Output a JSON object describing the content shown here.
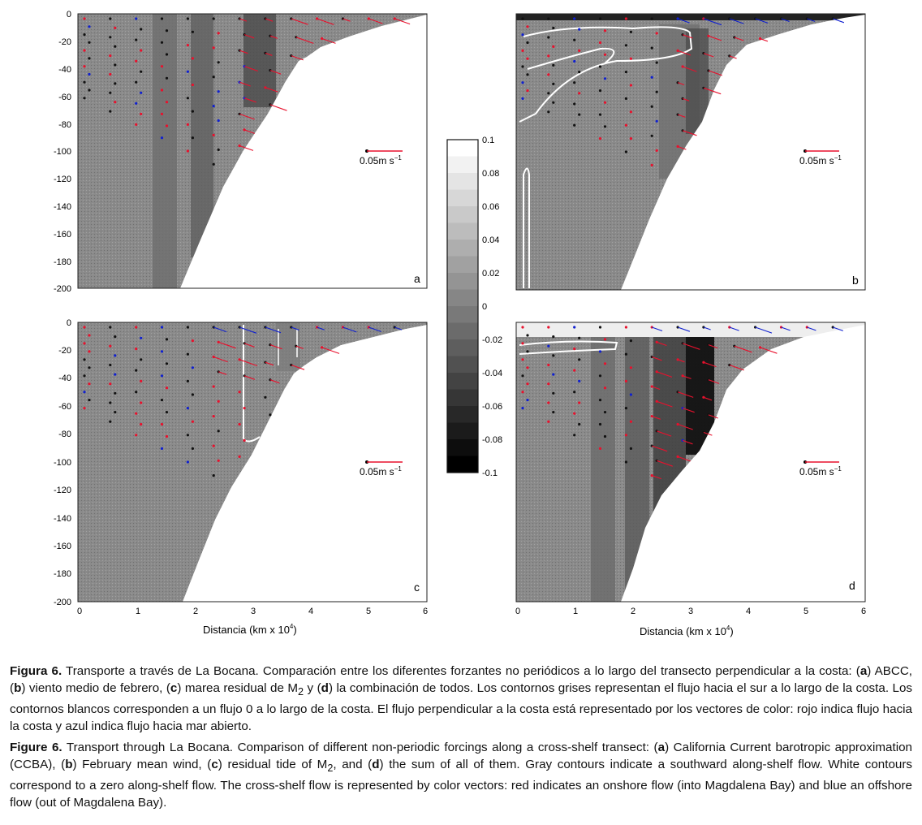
{
  "figure": {
    "panels": [
      {
        "id": "a",
        "label": "a",
        "scale_label": "0.05m s",
        "scale_exp": "−1",
        "y_ticks": [
          "0",
          "-20",
          "-40",
          "-60",
          "-80",
          "-100",
          "-120",
          "-140",
          "-160",
          "-180",
          "-200"
        ]
      },
      {
        "id": "b",
        "label": "b",
        "scale_label": "0.05m s",
        "scale_exp": "−1"
      },
      {
        "id": "c",
        "label": "c",
        "scale_label": "0.05m s",
        "scale_exp": "−1",
        "y_ticks": [
          "0",
          "-20",
          "-40",
          "-60",
          "-80",
          "-100",
          "-120",
          "-140",
          "-160",
          "-180",
          "-200"
        ],
        "x_ticks": [
          "0",
          "1",
          "2",
          "3",
          "4",
          "5",
          "6"
        ]
      },
      {
        "id": "d",
        "label": "d",
        "scale_label": "0.05m s",
        "scale_exp": "−1",
        "x_ticks": [
          "0",
          "1",
          "2",
          "3",
          "4",
          "5",
          "6"
        ]
      }
    ],
    "xlabel_left": "Distancia (km x 10",
    "xlabel_right": "Distancia (km x 10",
    "xlabel_exp": "4",
    "xlabel_close": ")",
    "colorbar_ticks": [
      "0.1",
      "0.08",
      "0.06",
      "0.04",
      "0.02",
      "0",
      "-0.02",
      "-0.04",
      "-0.06",
      "-0.08",
      "-0.1"
    ],
    "colors": {
      "onshore": "#e8112d",
      "offshore": "#1020d0"
    }
  },
  "caption_es": {
    "label": "Figura 6.",
    "t1": " Transporte a través de La Bocana. Comparación entre los diferentes forzantes no periódicos a lo largo del transecto perpendicular a la costa: (",
    "a": "a",
    "t2": ") ABCC, (",
    "b": "b",
    "t3": ") viento medio de febrero, (",
    "c": "c",
    "t4": ") marea residual de M",
    "sub": "2",
    "t5": " y (",
    "d": "d",
    "t6": ") la combinación de todos. Los contornos grises representan el flujo hacia el sur a lo largo de la costa. Los contornos blancos corresponden a un flujo 0 a lo largo de la costa. El flujo perpendicular a la costa está representado por los vectores de color: rojo indica flujo hacia la costa y azul indica flujo hacia mar abierto."
  },
  "caption_en": {
    "label": "Figure 6.",
    "t1": " Transport through La Bocana. Comparison of different non-periodic forcings along a cross-shelf transect: (",
    "a": "a",
    "t2": ") California Current barotropic approximation (CCBA), (",
    "b": "b",
    "t3": ") February mean wind, (",
    "c": "c",
    "t4": ") residual tide of M",
    "sub": "2",
    "t5": ", and (",
    "d": "d",
    "t6": ") the sum of all of them. Gray contours indicate a southward along-shelf flow. White contours correspond to a zero along-shelf flow. The cross-shelf flow is represented by color vectors: red indicates an onshore flow (into Magdalena Bay) and blue an offshore flow (out of Magdalena Bay)."
  }
}
